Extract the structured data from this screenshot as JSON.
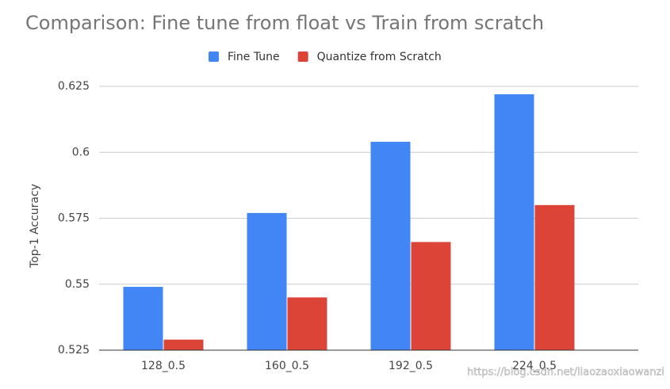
{
  "chart_data": {
    "type": "bar",
    "title": "Comparison: Fine tune from float vs Train from scratch",
    "y_label": "Top-1 Accuracy",
    "categories": [
      "128_0.5",
      "160_0.5",
      "192_0.5",
      "224_0.5"
    ],
    "series": [
      {
        "name": "Fine Tune",
        "color": "#4285f4",
        "values": [
          0.549,
          0.577,
          0.604,
          0.622
        ]
      },
      {
        "name": "Quantize from Scratch",
        "color": "#db4437",
        "values": [
          0.529,
          0.545,
          0.566,
          0.58
        ]
      }
    ],
    "ylim": [
      0.525,
      0.625
    ],
    "yticks": [
      0.525,
      0.55,
      0.575,
      0.6,
      0.625
    ],
    "grid": true,
    "legend": "top",
    "watermark": "https://blog.csdn.net/liaozaoxiaowanzi"
  }
}
